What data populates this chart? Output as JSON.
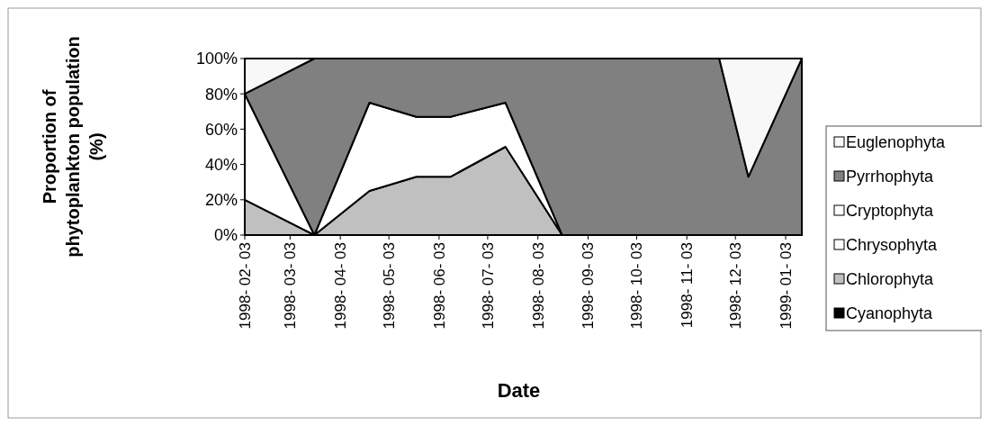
{
  "chart_data": {
    "type": "area",
    "stacked": true,
    "xlabel": "Date",
    "ylabel": "Proportion of phytoplankton population (%)",
    "x": [
      "1998-02-03",
      "1998-03-18",
      "1998-04-21",
      "1998-05-20",
      "1998-06-10",
      "1998-07-14",
      "1998-08-18",
      "1998-11-23",
      "1998-12-11",
      "1999-01-13"
    ],
    "series": [
      {
        "name": "Cyanophyta",
        "color": "#000000",
        "values": [
          null,
          null,
          null,
          null,
          null,
          null,
          null,
          null,
          null,
          null
        ]
      },
      {
        "name": "Chlorophyta",
        "color": "#c0c0c0",
        "values": [
          20,
          0,
          25,
          33,
          33,
          50,
          0,
          0,
          0,
          0
        ]
      },
      {
        "name": "Chrysophyta",
        "color": "#ffffff",
        "values": [
          60,
          0,
          50,
          34,
          34,
          25,
          0,
          0,
          0,
          0
        ]
      },
      {
        "name": "Cryptophyta",
        "color": "#ffffff",
        "values": [
          null,
          null,
          null,
          null,
          null,
          null,
          null,
          null,
          null,
          null
        ]
      },
      {
        "name": "Pyrrhophyta",
        "color": "#808080",
        "values": [
          0,
          100,
          25,
          33,
          33,
          25,
          100,
          100,
          33,
          100
        ]
      },
      {
        "name": "Euglenophyta",
        "color": "#f8f8f8",
        "values": [
          20,
          0,
          0,
          0,
          0,
          0,
          0,
          0,
          67,
          0
        ]
      }
    ],
    "xlim": [
      "1998-02-03",
      "1999-01-13"
    ],
    "xticks": [
      {
        "value": "1998-02-03",
        "label": "1998- 02- 03"
      },
      {
        "value": "1998-03-03",
        "label": "1998- 03- 03"
      },
      {
        "value": "1998-04-03",
        "label": "1998- 04- 03"
      },
      {
        "value": "1998-05-03",
        "label": "1998- 05- 03"
      },
      {
        "value": "1998-06-03",
        "label": "1998- 06- 03"
      },
      {
        "value": "1998-07-03",
        "label": "1998- 07- 03"
      },
      {
        "value": "1998-08-03",
        "label": "1998- 08- 03"
      },
      {
        "value": "1998-09-03",
        "label": "1998- 09- 03"
      },
      {
        "value": "1998-10-03",
        "label": "1998- 10- 03"
      },
      {
        "value": "1998-11-03",
        "label": "1998- 11- 03"
      },
      {
        "value": "1998-12-03",
        "label": "1998- 12- 03"
      },
      {
        "value": "1999-01-03",
        "label": "1999- 01- 03"
      }
    ],
    "ylim": [
      0,
      100
    ],
    "yticks": [
      {
        "value": 0,
        "label": "0%"
      },
      {
        "value": 20,
        "label": "20%"
      },
      {
        "value": 40,
        "label": "40%"
      },
      {
        "value": 60,
        "label": "60%"
      },
      {
        "value": 80,
        "label": "80%"
      },
      {
        "value": 100,
        "label": "100%"
      }
    ],
    "legend": "right"
  }
}
